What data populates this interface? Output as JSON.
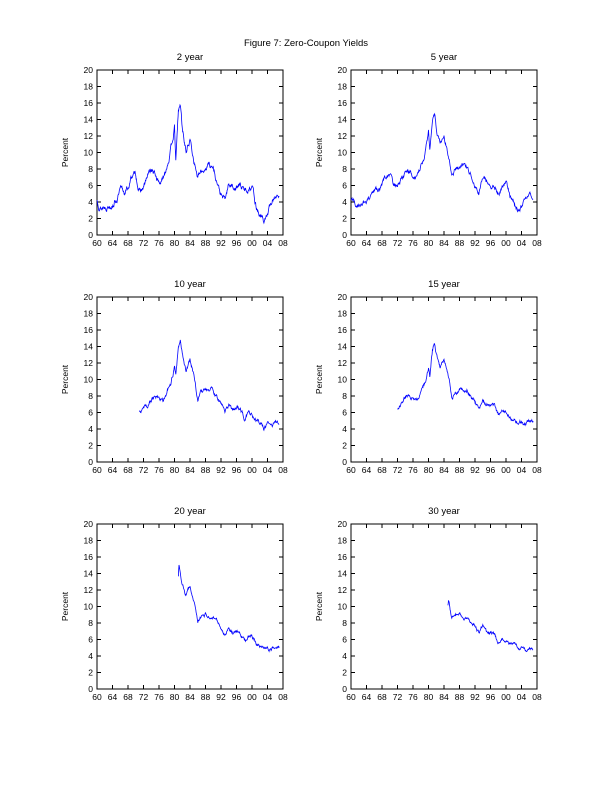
{
  "page": {
    "title": "Figure 7: Zero-Coupon Yields"
  },
  "chart_data": {
    "type": "line",
    "layout": "3x2 grid of subplots",
    "x_range": [
      1960,
      2008
    ],
    "x_tick_step": 4,
    "x_tick_labels": [
      "60",
      "64",
      "68",
      "72",
      "76",
      "80",
      "84",
      "88",
      "92",
      "96",
      "00",
      "04",
      "08"
    ],
    "y_range": [
      0,
      20
    ],
    "y_tick_step": 2,
    "ylabel": "Percent",
    "line_color": "#0000FF",
    "subplots": [
      {
        "title": "2 year",
        "first_year": 1960,
        "wiggle": 0.5,
        "yearly_values": [
          4.2,
          3.4,
          3.5,
          3.7,
          4.0,
          4.3,
          5.4,
          5.1,
          5.7,
          7.2,
          7.2,
          5.2,
          5.6,
          7.0,
          7.9,
          7.2,
          6.4,
          6.6,
          8.5,
          10.2,
          13.0,
          15.0,
          13.0,
          10.1,
          11.6,
          9.2,
          7.0,
          7.5,
          8.2,
          8.7,
          8.1,
          6.4,
          4.7,
          4.1,
          6.0,
          6.0,
          5.8,
          6.0,
          5.3,
          5.5,
          6.4,
          3.7,
          2.5,
          1.7,
          2.4,
          3.9,
          4.9,
          4.4
        ],
        "extra_points": [
          [
            1980.35,
            8.8
          ],
          [
            1980.95,
            14.6
          ],
          [
            1981.55,
            15.6
          ]
        ]
      },
      {
        "title": "5 year",
        "first_year": 1960,
        "wiggle": 0.42,
        "yearly_values": [
          4.3,
          3.8,
          3.8,
          3.9,
          4.1,
          4.3,
          5.2,
          5.2,
          5.7,
          6.9,
          7.4,
          5.9,
          6.0,
          6.9,
          7.7,
          7.6,
          7.0,
          6.9,
          8.4,
          9.6,
          12.2,
          14.0,
          13.0,
          10.8,
          12.2,
          10.0,
          7.5,
          8.0,
          8.5,
          8.6,
          8.4,
          7.4,
          6.2,
          5.2,
          6.9,
          6.4,
          6.2,
          6.3,
          5.2,
          5.8,
          6.2,
          4.6,
          3.8,
          2.9,
          3.4,
          4.0,
          4.8,
          4.4
        ],
        "extra_points": [
          [
            1980.35,
            9.8
          ],
          [
            1980.95,
            13.8
          ],
          [
            1981.55,
            14.8
          ]
        ]
      },
      {
        "title": "10 year",
        "first_year": 1971,
        "wiggle": 0.36,
        "yearly_values": [
          6.1,
          6.2,
          6.8,
          7.6,
          7.9,
          7.6,
          7.4,
          8.4,
          9.4,
          11.5,
          13.8,
          13.2,
          11.1,
          12.4,
          10.6,
          7.7,
          8.4,
          8.8,
          8.5,
          8.6,
          7.9,
          7.0,
          5.9,
          7.1,
          6.6,
          6.4,
          6.4,
          5.3,
          5.9,
          6.0,
          5.0,
          4.6,
          4.0,
          4.3,
          4.3,
          4.8,
          4.6
        ],
        "extra_points": [
          [
            1980.35,
            10.3
          ],
          [
            1981.55,
            14.5
          ]
        ]
      },
      {
        "title": "15 year",
        "first_year": 1972,
        "wiggle": 0.33,
        "yearly_values": [
          6.3,
          7.0,
          7.8,
          8.1,
          7.9,
          7.6,
          8.5,
          9.4,
          11.4,
          13.6,
          13.0,
          11.3,
          12.4,
          10.8,
          8.0,
          8.7,
          9.0,
          8.6,
          8.7,
          8.1,
          7.3,
          6.3,
          7.5,
          6.9,
          6.7,
          6.6,
          5.5,
          6.1,
          6.1,
          5.4,
          5.1,
          4.6,
          4.8,
          4.5,
          4.9,
          4.7
        ],
        "extra_points": [
          [
            1980.35,
            10.5
          ],
          [
            1981.55,
            14.3
          ]
        ]
      },
      {
        "title": "20 year",
        "first_year": 1981,
        "wiggle": 0.3,
        "yearly_values": [
          13.8,
          12.6,
          11.4,
          12.3,
          10.8,
          8.1,
          8.9,
          9.1,
          8.6,
          8.8,
          8.2,
          7.5,
          6.5,
          7.7,
          7.0,
          6.9,
          6.7,
          5.7,
          6.3,
          6.2,
          5.7,
          5.4,
          5.0,
          5.1,
          4.6,
          4.9,
          4.8
        ],
        "extra_points": [
          [
            1981.15,
            15.2
          ]
        ]
      },
      {
        "title": "30 year",
        "first_year": 1985,
        "wiggle": 0.27,
        "yearly_values": [
          10.2,
          8.4,
          8.9,
          9.0,
          8.5,
          8.6,
          8.3,
          7.8,
          6.8,
          7.7,
          7.0,
          6.8,
          6.6,
          5.6,
          6.1,
          6.0,
          5.6,
          5.4,
          5.0,
          5.0,
          4.6,
          4.8,
          4.7
        ],
        "extra_points": [
          [
            1985.2,
            10.9
          ]
        ]
      }
    ]
  }
}
